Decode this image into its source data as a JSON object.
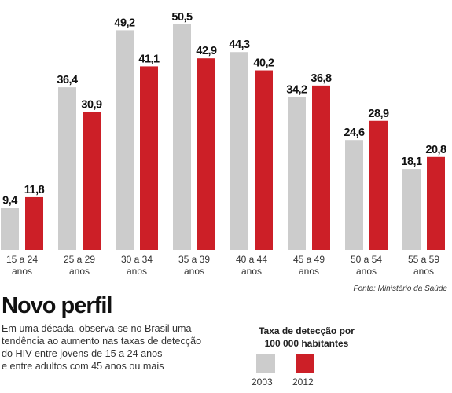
{
  "chart_data": {
    "type": "bar",
    "categories": [
      [
        "15 a 24",
        "anos"
      ],
      [
        "25 a 29",
        "anos"
      ],
      [
        "30 a 34",
        "anos"
      ],
      [
        "35 a 39",
        "anos"
      ],
      [
        "40 a 44",
        "anos"
      ],
      [
        "45 a 49",
        "anos"
      ],
      [
        "50 a 54",
        "anos"
      ],
      [
        "55 a 59",
        "anos"
      ]
    ],
    "series": [
      {
        "name": "2003",
        "color": "#cccccc",
        "values": [
          9.4,
          36.4,
          49.2,
          50.5,
          44.3,
          34.2,
          24.6,
          18.1
        ],
        "labels": [
          "9,4",
          "36,4",
          "49,2",
          "50,5",
          "44,3",
          "34,2",
          "24,6",
          "18,1"
        ]
      },
      {
        "name": "2012",
        "color": "#cc1f27",
        "values": [
          11.8,
          30.9,
          41.1,
          42.9,
          40.2,
          36.8,
          28.9,
          20.8
        ],
        "labels": [
          "11,8",
          "30,9",
          "41,1",
          "42,9",
          "40,2",
          "36,8",
          "28,9",
          "20,8"
        ]
      }
    ],
    "ylim": [
      0,
      50.5
    ],
    "grid": false
  },
  "source": "Fonte: Ministério da Saúde",
  "title": "Novo perfil",
  "description": [
    "Em uma década, observa-se no Brasil uma",
    "tendência ao aumento nas taxas de detecção",
    "do HIV entre jovens de 15 a 24 anos",
    "e entre adultos com 45 anos ou mais"
  ],
  "legend": {
    "title_line1": "Taxa de detecção por",
    "title_line2": "100 000 habitantes",
    "item_2003": "2003",
    "item_2012": "2012"
  }
}
